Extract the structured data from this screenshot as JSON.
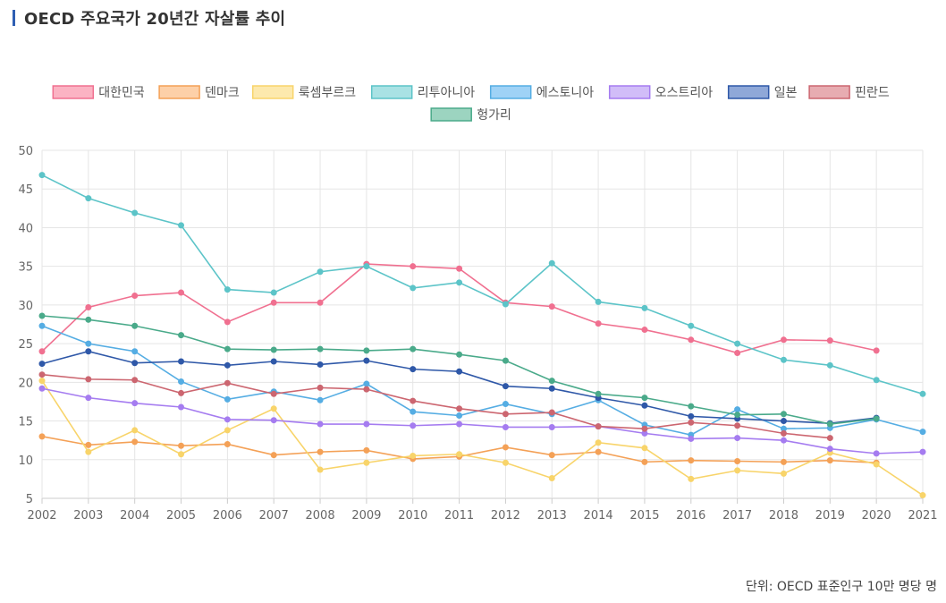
{
  "page": {
    "title": "OECD 주요국가 20년간 자살률 추이",
    "unit_note": "단위: OECD 표준인구 10만 명당 명"
  },
  "colors": {
    "title_bar": "#2f5fb3",
    "grid": "#e5e5e5",
    "axis_text": "#666666"
  },
  "chart_data": {
    "type": "line",
    "title": "OECD 주요국가 20년간 자살률 추이",
    "xlabel": "",
    "ylabel": "",
    "ylim": [
      5,
      50
    ],
    "yticks": [
      5,
      10,
      15,
      20,
      25,
      30,
      35,
      40,
      45,
      50
    ],
    "x": [
      "2002",
      "2003",
      "2004",
      "2005",
      "2006",
      "2007",
      "2008",
      "2009",
      "2010",
      "2011",
      "2012",
      "2013",
      "2014",
      "2015",
      "2016",
      "2017",
      "2018",
      "2019",
      "2020",
      "2021"
    ],
    "grid": true,
    "legend": "top",
    "series": [
      {
        "name": "대한민국",
        "color": "#f07090",
        "fill": "#fbb3c3",
        "values": [
          24.0,
          29.7,
          31.2,
          31.6,
          27.8,
          30.3,
          30.3,
          35.3,
          35.0,
          34.7,
          30.3,
          29.8,
          27.6,
          26.8,
          25.5,
          23.8,
          25.5,
          25.4,
          24.1,
          null
        ]
      },
      {
        "name": "덴마크",
        "color": "#f4a157",
        "fill": "#fdd0a8",
        "values": [
          13.0,
          11.9,
          12.3,
          11.8,
          12.0,
          10.6,
          11.0,
          11.2,
          10.1,
          10.4,
          11.6,
          10.6,
          11.0,
          9.7,
          9.9,
          9.8,
          9.7,
          9.9,
          9.6,
          null
        ]
      },
      {
        "name": "룩셈부르크",
        "color": "#f8d46a",
        "fill": "#fde9ad",
        "values": [
          20.2,
          11.0,
          13.8,
          10.7,
          13.8,
          16.6,
          8.7,
          9.6,
          10.5,
          10.7,
          9.6,
          7.6,
          12.2,
          11.5,
          7.5,
          8.6,
          8.2,
          10.9,
          9.4,
          5.4
        ]
      },
      {
        "name": "리투아니아",
        "color": "#5cc4c8",
        "fill": "#a9e2e4",
        "values": [
          46.8,
          43.8,
          41.9,
          40.3,
          32.0,
          31.6,
          34.3,
          35.0,
          32.2,
          32.9,
          30.1,
          35.4,
          30.4,
          29.6,
          27.3,
          25.0,
          22.9,
          22.2,
          20.3,
          18.5
        ]
      },
      {
        "name": "에스토니아",
        "color": "#55ade3",
        "fill": "#9fd2f6",
        "values": [
          27.3,
          25.0,
          24.0,
          20.1,
          17.8,
          18.8,
          17.7,
          19.8,
          16.2,
          15.7,
          17.2,
          15.9,
          17.7,
          14.5,
          13.2,
          16.5,
          14.0,
          14.1,
          15.2,
          13.6
        ]
      },
      {
        "name": "오스트리아",
        "color": "#a57cf0",
        "fill": "#d1bdf8",
        "values": [
          19.2,
          18.0,
          17.3,
          16.8,
          15.2,
          15.1,
          14.6,
          14.6,
          14.4,
          14.6,
          14.2,
          14.2,
          14.3,
          13.4,
          12.7,
          12.8,
          12.5,
          11.4,
          10.8,
          11.0
        ]
      },
      {
        "name": "일본",
        "color": "#2f58a8",
        "fill": "#8fa8d8",
        "values": [
          22.4,
          24.0,
          22.5,
          22.7,
          22.2,
          22.7,
          22.3,
          22.8,
          21.7,
          21.4,
          19.5,
          19.2,
          18.0,
          17.0,
          15.6,
          15.3,
          15.0,
          14.7,
          15.4,
          null
        ]
      },
      {
        "name": "핀란드",
        "color": "#cc6670",
        "fill": "#e7acb1",
        "values": [
          21.0,
          20.4,
          20.3,
          18.6,
          19.9,
          18.5,
          19.3,
          19.1,
          17.6,
          16.6,
          15.9,
          16.1,
          14.3,
          14.0,
          14.8,
          14.4,
          13.4,
          12.8,
          null,
          null
        ]
      },
      {
        "name": "헝가리",
        "color": "#4aaa8a",
        "fill": "#9cd4c0",
        "values": [
          28.6,
          28.1,
          27.3,
          26.1,
          24.3,
          24.2,
          24.3,
          24.1,
          24.3,
          23.6,
          22.8,
          20.2,
          18.5,
          18.0,
          16.9,
          15.8,
          15.9,
          14.6,
          15.3,
          null
        ]
      }
    ]
  }
}
